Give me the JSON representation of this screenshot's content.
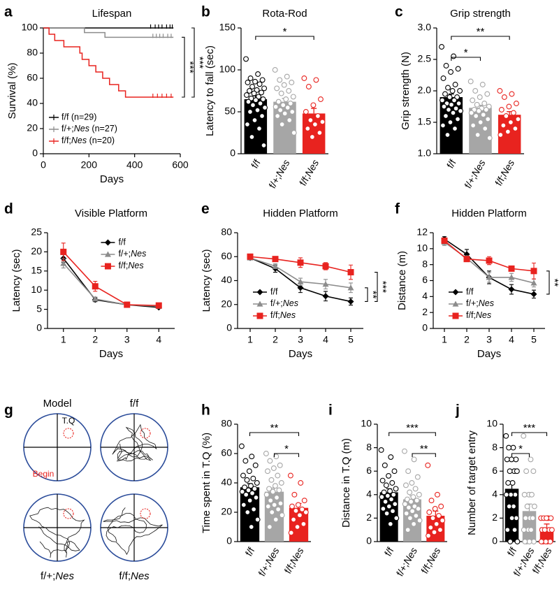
{
  "chart_data": [
    {
      "type": "step",
      "panel": "a",
      "title": "Lifespan",
      "x_label": "Days",
      "y_label": "Survival (%)",
      "xlim": [
        0,
        600
      ],
      "xticks": [
        0,
        200,
        400,
        600
      ],
      "ylim": [
        0,
        100
      ],
      "yticks": [
        0,
        20,
        40,
        60,
        80,
        100
      ],
      "series": [
        {
          "name": "f/f (n=29)",
          "color": "#000000",
          "x": [
            0,
            570
          ],
          "values": [
            100,
            100
          ],
          "censored": [
            470,
            490,
            505,
            520,
            540,
            555,
            565
          ]
        },
        {
          "name": "f/+;Nes (n=27)",
          "color": "#8c8c8c",
          "x": [
            0,
            180,
            270,
            570
          ],
          "values": [
            100,
            96.3,
            92.6,
            92.6
          ],
          "censored": [
            480,
            495,
            510,
            525,
            545,
            560
          ]
        },
        {
          "name": "f/f;Nes (n=20)",
          "color": "#e8231f",
          "x": [
            0,
            25,
            50,
            90,
            160,
            170,
            200,
            230,
            260,
            290,
            330,
            360,
            570
          ],
          "values": [
            100,
            95,
            90,
            85,
            80,
            75,
            70,
            65,
            60,
            55,
            50,
            45,
            45
          ],
          "censored": [
            480,
            500,
            520,
            540,
            560
          ]
        }
      ],
      "significance": [
        {
          "from": 1,
          "to": 2,
          "label": "***"
        },
        {
          "from": 0,
          "to": 2,
          "label": "***"
        }
      ]
    },
    {
      "type": "bar",
      "panel": "b",
      "title": "Rota-Rod",
      "y_label": "Latency to fall (sec)",
      "categories": [
        "f/f",
        "f/+;Nes",
        "f/f;Nes"
      ],
      "colors": [
        "#000000",
        "#a6a6a6",
        "#e8231f"
      ],
      "values": [
        65,
        62,
        48
      ],
      "errors": [
        4,
        4,
        6
      ],
      "ylim": [
        0,
        150
      ],
      "yticks": [
        0,
        50,
        100,
        150
      ],
      "points": [
        [
          113,
          95,
          90,
          88,
          86,
          85,
          83,
          80,
          78,
          76,
          75,
          73,
          72,
          70,
          68,
          66,
          65,
          64,
          62,
          60,
          58,
          55,
          52,
          50,
          45,
          40,
          35,
          30,
          20,
          10
        ],
        [
          100,
          92,
          88,
          85,
          82,
          78,
          75,
          72,
          68,
          65,
          62,
          60,
          58,
          56,
          55,
          52,
          50,
          48,
          45,
          40,
          35,
          25
        ],
        [
          90,
          88,
          80,
          65,
          58,
          50,
          45,
          40,
          38,
          35,
          30,
          25,
          20
        ]
      ],
      "significance": [
        {
          "from": 0,
          "to": 2,
          "label": "*"
        }
      ]
    },
    {
      "type": "bar",
      "panel": "c",
      "title": "Grip strength",
      "y_label": "Grip strength (N)",
      "categories": [
        "f/f",
        "f/+;Nes",
        "f/f;Nes"
      ],
      "colors": [
        "#000000",
        "#a6a6a6",
        "#e8231f"
      ],
      "values": [
        1.9,
        1.73,
        1.62
      ],
      "errors": [
        0.05,
        0.04,
        0.05
      ],
      "ylim": [
        1,
        3
      ],
      "yticks": [
        {
          "value": 1,
          "label": "1.0"
        },
        1.5,
        {
          "value": 2,
          "label": "2.0"
        },
        2.5,
        {
          "value": 3,
          "label": "3.0"
        }
      ],
      "points": [
        [
          2.7,
          2.55,
          2.4,
          2.35,
          2.3,
          2.2,
          2.1,
          2.05,
          2.0,
          2.0,
          1.95,
          1.9,
          1.9,
          1.85,
          1.85,
          1.8,
          1.8,
          1.78,
          1.75,
          1.72,
          1.7,
          1.68,
          1.65,
          1.6,
          1.55,
          1.5,
          1.45,
          1.4,
          1.3
        ],
        [
          2.15,
          2.1,
          2.0,
          1.95,
          1.9,
          1.85,
          1.8,
          1.78,
          1.75,
          1.72,
          1.7,
          1.7,
          1.68,
          1.65,
          1.62,
          1.6,
          1.55,
          1.5,
          1.45,
          1.4,
          1.3,
          1.25
        ],
        [
          2.0,
          1.95,
          1.9,
          1.8,
          1.75,
          1.7,
          1.65,
          1.6,
          1.55,
          1.5,
          1.45,
          1.4,
          1.35,
          1.3
        ]
      ],
      "significance": [
        {
          "from": 0,
          "to": 2,
          "label": "**"
        },
        {
          "from": 0,
          "to": 1,
          "label": "*"
        }
      ]
    },
    {
      "type": "line",
      "panel": "d",
      "title": "Visible Platform",
      "x_label": "Days",
      "y_label": "Latency (sec)",
      "x": [
        1,
        2,
        3,
        4
      ],
      "xlim": [
        0.5,
        4.5
      ],
      "xticks": [
        1,
        2,
        3,
        4
      ],
      "ylim": [
        0,
        25
      ],
      "yticks": [
        0,
        5,
        10,
        15,
        20,
        25
      ],
      "legend": "upper right",
      "series": [
        {
          "name": "f/f",
          "color": "#000000",
          "marker": "diamond",
          "values": [
            18.3,
            7.5,
            6.2,
            5.5
          ],
          "errors": [
            1,
            0.5,
            0.3,
            0.3
          ]
        },
        {
          "name": "f/+;Nes",
          "color": "#8c8c8c",
          "marker": "triangle",
          "values": [
            17,
            7.7,
            6.2,
            5.8
          ],
          "errors": [
            1.2,
            0.5,
            0.3,
            0.3
          ]
        },
        {
          "name": "f/f;Nes",
          "color": "#e8231f",
          "marker": "square",
          "values": [
            20,
            11,
            6.2,
            6
          ],
          "errors": [
            2.3,
            1.3,
            0.4,
            0.4
          ]
        }
      ],
      "significance": []
    },
    {
      "type": "line",
      "panel": "e",
      "title": "Hidden Platform",
      "x_label": "Days",
      "y_label": "Latency (sec)",
      "x": [
        1,
        2,
        3,
        4,
        5
      ],
      "xlim": [
        0.5,
        5.5
      ],
      "xticks": [
        1,
        2,
        3,
        4,
        5
      ],
      "ylim": [
        0,
        80
      ],
      "yticks": [
        0,
        20,
        40,
        60,
        80
      ],
      "legend": "lower left",
      "series": [
        {
          "name": "f/f",
          "color": "#000000",
          "marker": "diamond",
          "values": [
            59,
            50,
            34,
            27,
            22.5
          ],
          "errors": [
            1,
            3,
            4,
            4,
            3
          ]
        },
        {
          "name": "f/+;Nes",
          "color": "#8c8c8c",
          "marker": "triangle",
          "values": [
            59,
            52,
            39,
            37,
            34
          ],
          "errors": [
            1,
            2,
            3,
            4,
            4
          ]
        },
        {
          "name": "f/f;Nes",
          "color": "#e8231f",
          "marker": "square",
          "values": [
            60,
            58,
            55,
            52,
            47
          ],
          "errors": [
            1,
            1.5,
            4,
            3,
            6
          ]
        }
      ],
      "significance": [
        {
          "from": 0,
          "to": 1,
          "label": "**"
        },
        {
          "from": 0,
          "to": 2,
          "label": "***"
        }
      ]
    },
    {
      "type": "line",
      "panel": "f",
      "title": "Hidden Platform",
      "x_label": "Days",
      "y_label": "Distance (m)",
      "x": [
        1,
        2,
        3,
        4,
        5
      ],
      "xlim": [
        0.5,
        5.5
      ],
      "xticks": [
        1,
        2,
        3,
        4,
        5
      ],
      "ylim": [
        0,
        12
      ],
      "yticks": [
        0,
        2,
        4,
        6,
        8,
        10,
        12
      ],
      "legend": "lower left",
      "series": [
        {
          "name": "f/f",
          "color": "#000000",
          "marker": "diamond",
          "values": [
            11.2,
            9.3,
            6.4,
            4.9,
            4.3
          ],
          "errors": [
            0.3,
            0.6,
            0.8,
            0.6,
            0.5
          ]
        },
        {
          "name": "f/+;Nes",
          "color": "#8c8c8c",
          "marker": "triangle",
          "values": [
            10.8,
            8.8,
            6.4,
            6.4,
            5.7
          ],
          "errors": [
            0.4,
            0.3,
            0.6,
            0.5,
            0.5
          ]
        },
        {
          "name": "f/f;Nes",
          "color": "#e8231f",
          "marker": "square",
          "values": [
            11,
            8.7,
            8.5,
            7.5,
            7.2
          ],
          "errors": [
            0.3,
            0.2,
            0.5,
            0.3,
            1
          ]
        }
      ],
      "significance": [
        {
          "from": 0,
          "to": 2,
          "label": "**"
        }
      ]
    },
    {
      "type": "maze",
      "panel": "g",
      "labels": [
        "Model",
        "f/f",
        "f/+;Nes",
        "f/f;Nes"
      ],
      "target": "T.Q",
      "start": "Begin"
    },
    {
      "type": "bar",
      "panel": "h",
      "y_label": "Time spent in T.Q (%)",
      "categories": [
        "f/f",
        "f/+;Nes",
        "f/f;Nes"
      ],
      "colors": [
        "#000000",
        "#a6a6a6",
        "#e8231f"
      ],
      "values": [
        37,
        34,
        23
      ],
      "errors": [
        2.5,
        2.5,
        3
      ],
      "ylim": [
        0,
        80
      ],
      "yticks": [
        0,
        20,
        40,
        60,
        80
      ],
      "points": [
        [
          65,
          58,
          55,
          52,
          48,
          45,
          43,
          42,
          40,
          38,
          37,
          36,
          35,
          34,
          33,
          32,
          30,
          28,
          25,
          22,
          20,
          15,
          10
        ],
        [
          60,
          58,
          55,
          52,
          50,
          48,
          45,
          42,
          40,
          38,
          36,
          35,
          34,
          32,
          30,
          28,
          26,
          25,
          24,
          22,
          20,
          18,
          15,
          10
        ],
        [
          45,
          40,
          32,
          28,
          25,
          24,
          22,
          21,
          20,
          18,
          15,
          12,
          10,
          6
        ]
      ],
      "significance": [
        {
          "from": 0,
          "to": 2,
          "label": "**"
        },
        {
          "from": 1,
          "to": 2,
          "label": "*"
        }
      ]
    },
    {
      "type": "bar",
      "panel": "i",
      "y_label": "Distance in T.Q (m)",
      "categories": [
        "f/f",
        "f/+;Nes",
        "f/f;Nes"
      ],
      "colors": [
        "#000000",
        "#a6a6a6",
        "#e8231f"
      ],
      "values": [
        4.2,
        3.6,
        2.2
      ],
      "errors": [
        0.3,
        0.3,
        0.4
      ],
      "ylim": [
        0,
        10
      ],
      "yticks": [
        0,
        2,
        4,
        6,
        8,
        10
      ],
      "points": [
        [
          7.8,
          7.2,
          6.5,
          6,
          5.6,
          5.2,
          5,
          4.8,
          4.5,
          4.3,
          4.2,
          4,
          3.9,
          3.8,
          3.6,
          3.4,
          3.2,
          3,
          2.8,
          2.6,
          2.4,
          2,
          1.5
        ],
        [
          7.7,
          7,
          6,
          5.5,
          5,
          4.8,
          4.5,
          4.2,
          4,
          3.8,
          3.6,
          3.5,
          3.4,
          3.2,
          3,
          2.9,
          2.8,
          2.6,
          2.4,
          2.2,
          2,
          1.8,
          1.5,
          1
        ],
        [
          6.5,
          4,
          3.5,
          3,
          2.8,
          2.5,
          2.2,
          2,
          1.8,
          1.5,
          1.2,
          1,
          0.8,
          0.5
        ]
      ],
      "significance": [
        {
          "from": 0,
          "to": 2,
          "label": "***"
        },
        {
          "from": 1,
          "to": 2,
          "label": "**"
        }
      ]
    },
    {
      "type": "bar",
      "panel": "j",
      "y_label": "Number of target entry",
      "categories": [
        "f/f",
        "f/+;Nes",
        "f/f;Nes"
      ],
      "colors": [
        "#000000",
        "#a6a6a6",
        "#e8231f"
      ],
      "values": [
        4.5,
        2.6,
        1.2
      ],
      "errors": [
        0.6,
        0.6,
        0.3
      ],
      "ylim": [
        0,
        10
      ],
      "yticks": [
        0,
        2,
        4,
        6,
        8,
        10
      ],
      "points": [
        [
          9,
          8,
          8,
          7,
          7,
          7,
          6,
          6,
          6,
          5,
          5,
          4,
          4,
          4,
          3,
          3,
          2,
          2,
          1,
          1,
          0,
          0
        ],
        [
          9,
          7,
          6,
          6,
          4,
          4,
          4,
          3,
          3,
          2,
          2,
          2,
          1,
          1,
          1,
          0,
          0,
          0,
          0
        ],
        [
          2,
          2,
          2,
          2,
          2,
          1,
          1,
          1,
          1,
          0,
          0,
          0,
          0,
          0
        ]
      ],
      "significance": [
        {
          "from": 0,
          "to": 2,
          "label": "***"
        },
        {
          "from": 0,
          "to": 1,
          "label": "*"
        }
      ]
    }
  ]
}
